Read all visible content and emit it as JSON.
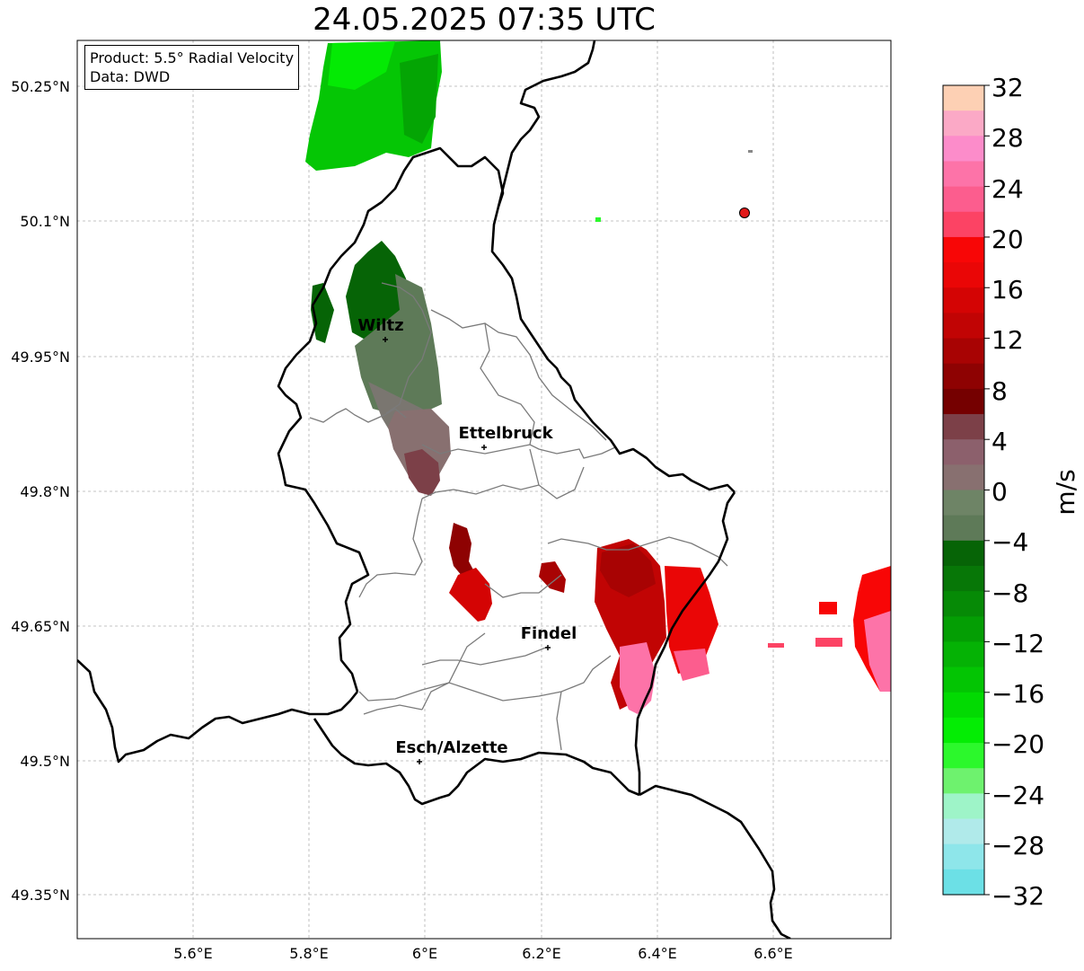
{
  "title": "24.05.2025 07:35 UTC",
  "info": {
    "product": "Product: 5.5° Radial Velocity",
    "data": "Data: DWD"
  },
  "lon_ticks": [
    "5.6°E",
    "5.8°E",
    "6°E",
    "6.2°E",
    "6.4°E",
    "6.6°E"
  ],
  "lat_ticks": [
    "50.25°N",
    "50.1°N",
    "49.95°N",
    "49.8°N",
    "49.65°N",
    "49.5°N",
    "49.35°N"
  ],
  "cities": [
    {
      "name": "Wiltz"
    },
    {
      "name": "Ettelbruck"
    },
    {
      "name": "Findel"
    },
    {
      "name": "Esch/Alzette"
    }
  ],
  "colorbar": {
    "unit": "m/s",
    "ticks": [
      "32",
      "28",
      "24",
      "20",
      "16",
      "12",
      "8",
      "4",
      "0",
      "−4",
      "−8",
      "−12",
      "−16",
      "−20",
      "−24",
      "−28",
      "−32"
    ],
    "colors": [
      "#fdd0b4",
      "#fba9c6",
      "#fc8cca",
      "#fd73a8",
      "#fc5d8e",
      "#fc4364",
      "#f80606",
      "#ea0606",
      "#d40404",
      "#c10404",
      "#a80303",
      "#8e0202",
      "#750000",
      "#7c4048",
      "#8c606c",
      "#887070",
      "#6e8466",
      "#5e7a58",
      "#066406",
      "#077707",
      "#068a06",
      "#049e04",
      "#05b205",
      "#03c503",
      "#02da02",
      "#04ed04",
      "#2cf82c",
      "#6ef26e",
      "#9ef4c8",
      "#b0eaea",
      "#8ee6ea",
      "#6ce0e6"
    ]
  }
}
